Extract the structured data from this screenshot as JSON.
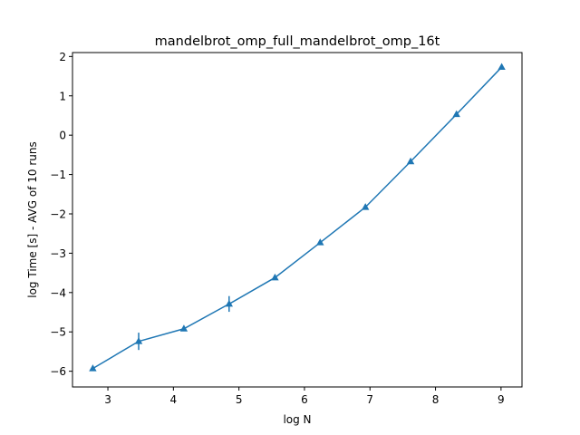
{
  "chart_data": {
    "type": "line",
    "title": "mandelbrot_omp_full_mandelbrot_omp_16t",
    "xlabel": "log N",
    "ylabel": "log Time  [s] - AVG of 10 runs",
    "xlim": [
      2.46,
      9.32
    ],
    "ylim": [
      -6.4,
      2.1
    ],
    "xticks": [
      3,
      4,
      5,
      6,
      7,
      8,
      9
    ],
    "yticks": [
      -6,
      -5,
      -4,
      -3,
      -2,
      -1,
      0,
      1,
      2
    ],
    "xtick_labels": [
      "3",
      "4",
      "5",
      "6",
      "7",
      "8",
      "9"
    ],
    "ytick_labels": [
      "−6",
      "−5",
      "−4",
      "−3",
      "−2",
      "−1",
      "0",
      "1",
      "2"
    ],
    "grid": false,
    "color": "#1f77b4",
    "marker": "triangle-up",
    "series": [
      {
        "name": "mandelbrot_omp_16t",
        "x": [
          2.77,
          3.47,
          4.16,
          4.85,
          5.55,
          6.24,
          6.93,
          7.62,
          8.32,
          9.01
        ],
        "y": [
          -5.93,
          -5.24,
          -4.92,
          -4.29,
          -3.62,
          -2.73,
          -1.83,
          -0.67,
          0.53,
          1.73
        ],
        "err": [
          0.05,
          0.22,
          0.06,
          0.2,
          0.05,
          0.05,
          0.04,
          0.03,
          0.03,
          0.03
        ]
      }
    ]
  }
}
